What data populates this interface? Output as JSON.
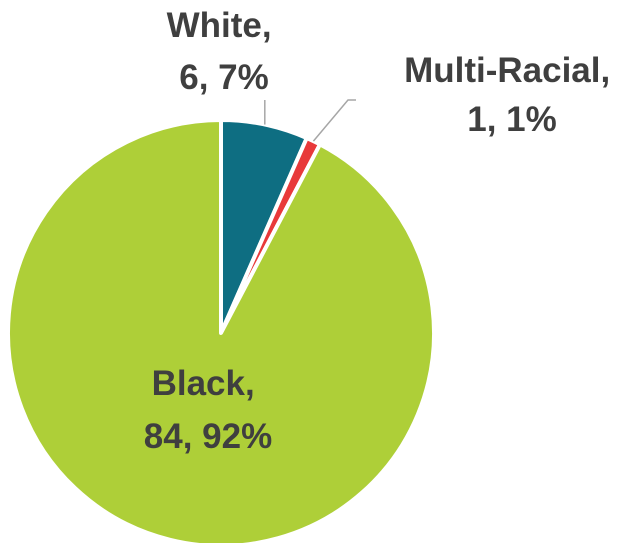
{
  "chart_data": {
    "type": "pie",
    "title": "",
    "slices": [
      {
        "label": "White",
        "value": 6,
        "percent": "7%",
        "color": "#0e6e82"
      },
      {
        "label": "Multi-Racial",
        "value": 1,
        "percent": "1%",
        "color": "#e8393a"
      },
      {
        "label": "Black",
        "value": 84,
        "percent": "92%",
        "color": "#aecf38"
      }
    ],
    "start_angle": "12 o'clock",
    "direction": "clockwise",
    "data_labels": [
      {
        "line1": "White,",
        "line2": "6, 7%"
      },
      {
        "line1": "Multi-Racial,",
        "line2": "1, 1%"
      },
      {
        "line1": "Black,",
        "line2": "84, 92%"
      }
    ]
  }
}
